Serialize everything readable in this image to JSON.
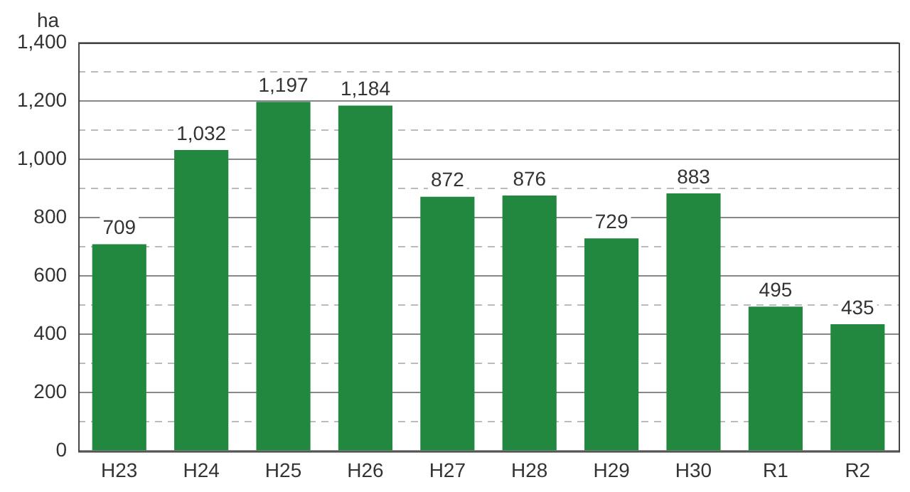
{
  "chart_data": {
    "type": "bar",
    "ylabel": "ha",
    "categories": [
      "H23",
      "H24",
      "H25",
      "H26",
      "H27",
      "H28",
      "H29",
      "H30",
      "R1",
      "R2"
    ],
    "values": [
      709,
      1032,
      1197,
      1184,
      872,
      876,
      729,
      883,
      495,
      435
    ],
    "value_labels": [
      "709",
      "1,032",
      "1,197",
      "1,184",
      "872",
      "876",
      "729",
      "883",
      "495",
      "435"
    ],
    "color": "#22883f",
    "ylim": [
      0,
      1400
    ],
    "yticks": [
      0,
      {
        "value": 100,
        "label": null
      },
      {
        "value": 200,
        "label": "200"
      },
      {
        "value": 300,
        "label": null
      },
      {
        "value": 400,
        "label": "400"
      },
      {
        "value": 500,
        "label": null
      },
      {
        "value": 600,
        "label": "600"
      },
      {
        "value": 700,
        "label": null
      },
      {
        "value": 800,
        "label": "800"
      },
      {
        "value": 900,
        "label": null
      },
      {
        "value": 1000,
        "label": "1,000"
      },
      {
        "value": 1100,
        "label": null
      },
      {
        "value": 1200,
        "label": "1,200"
      },
      {
        "value": 1300,
        "label": null
      },
      {
        "value": 1400,
        "label": "1,400"
      }
    ],
    "grid": "y"
  }
}
